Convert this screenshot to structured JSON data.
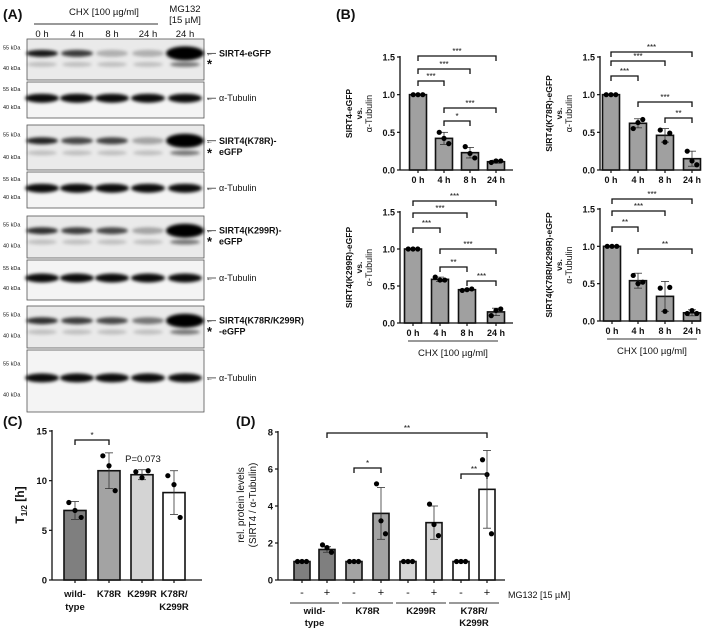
{
  "panels": {
    "a": "(A)",
    "b": "(B)",
    "c": "(C)",
    "d": "(D)"
  },
  "blot": {
    "chx_label": "CHX [100 µg/ml]",
    "mg132_label_1": "MG132",
    "mg132_label_2": "[15 µM]",
    "lanes": [
      "0 h",
      "4 h",
      "8 h",
      "24 h",
      "24 h"
    ],
    "kda_55": "55 kDa",
    "kda_40": "40 kDa",
    "asterisk": "*",
    "tubulin_label": "α-Tubulin",
    "blocks": [
      {
        "label_1": "SIRT4-eGFP",
        "label_2": "",
        "intensity": [
          0.9,
          0.75,
          0.25,
          0.25,
          1.0
        ]
      },
      {
        "label_1": "SIRT4(K78R)-",
        "label_2": "eGFP",
        "intensity": [
          0.85,
          0.7,
          0.72,
          0.3,
          1.0
        ]
      },
      {
        "label_1": "SIRT4(K299R)-",
        "label_2": "eGFP",
        "intensity": [
          0.8,
          0.75,
          0.7,
          0.3,
          1.0
        ]
      },
      {
        "label_1": "SIRT4(K78R/K299R)",
        "label_2": "-eGFP",
        "intensity": [
          0.8,
          0.75,
          0.7,
          0.5,
          1.0
        ]
      }
    ]
  },
  "chart_data": [
    {
      "id": "B1",
      "type": "bar",
      "ylabel_1": "SIRT4-eGFP",
      "ylabel_2": "vs.",
      "ylabel_3": "α-Tubulin",
      "categories": [
        "0 h",
        "4 h",
        "8 h",
        "24 h"
      ],
      "ylim": [
        0,
        1.5
      ],
      "yticks": [
        "0.0",
        "0.5",
        "1.0",
        "1.5"
      ],
      "values": [
        1.0,
        0.42,
        0.23,
        0.11
      ],
      "sd": [
        0,
        0.08,
        0.07,
        0.02
      ],
      "points": [
        [
          1,
          1,
          1
        ],
        [
          0.5,
          0.42,
          0.35
        ],
        [
          0.31,
          0.22,
          0.16
        ],
        [
          0.1,
          0.12,
          0.12
        ]
      ],
      "bar_color": "#a0a0a0",
      "significance": [
        {
          "from": 0,
          "to": 3,
          "label": "***"
        },
        {
          "from": 0,
          "to": 2,
          "label": "***"
        },
        {
          "from": 0,
          "to": 1,
          "label": "***"
        },
        {
          "from": 1,
          "to": 3,
          "label": "***"
        },
        {
          "from": 1,
          "to": 2,
          "label": "*"
        }
      ]
    },
    {
      "id": "B2",
      "type": "bar",
      "ylabel_1": "SIRT4(K78R)-eGFP",
      "ylabel_2": "vs.",
      "ylabel_3": "α-Tubulin",
      "categories": [
        "0 h",
        "4 h",
        "8 h",
        "24 h"
      ],
      "ylim": [
        0,
        1.5
      ],
      "yticks": [
        "0.0",
        "0.5",
        "1.0",
        "1.5"
      ],
      "values": [
        1.0,
        0.62,
        0.46,
        0.15
      ],
      "sd": [
        0,
        0.06,
        0.09,
        0.1
      ],
      "points": [
        [
          1,
          1,
          1
        ],
        [
          0.55,
          0.63,
          0.67
        ],
        [
          0.53,
          0.37,
          0.49
        ],
        [
          0.25,
          0.12,
          0.07
        ]
      ],
      "bar_color": "#a0a0a0",
      "significance": [
        {
          "from": 0,
          "to": 3,
          "label": "***"
        },
        {
          "from": 0,
          "to": 2,
          "label": "***"
        },
        {
          "from": 0,
          "to": 1,
          "label": "***"
        },
        {
          "from": 1,
          "to": 3,
          "label": "***"
        },
        {
          "from": 2,
          "to": 3,
          "label": "**"
        }
      ]
    },
    {
      "id": "B3",
      "type": "bar",
      "ylabel_1": "SIRT4(K299R)-eGFP",
      "ylabel_2": "vs.",
      "ylabel_3": "α-Tubulin",
      "categories": [
        "0 h",
        "4 h",
        "8 h",
        "24 h"
      ],
      "ylim": [
        0,
        1.5
      ],
      "yticks": [
        "0.0",
        "0.5",
        "1.0",
        "1.5"
      ],
      "values": [
        1.0,
        0.59,
        0.45,
        0.15
      ],
      "sd": [
        0,
        0.03,
        0.01,
        0.05
      ],
      "points": [
        [
          1,
          1,
          1
        ],
        [
          0.62,
          0.58,
          0.58
        ],
        [
          0.44,
          0.45,
          0.46
        ],
        [
          0.1,
          0.17,
          0.19
        ]
      ],
      "bar_color": "#a0a0a0",
      "xgroup_label": "CHX [100 µg/ml]",
      "significance": [
        {
          "from": 0,
          "to": 3,
          "label": "***"
        },
        {
          "from": 0,
          "to": 2,
          "label": "***"
        },
        {
          "from": 0,
          "to": 1,
          "label": "***"
        },
        {
          "from": 1,
          "to": 3,
          "label": "***"
        },
        {
          "from": 1,
          "to": 2,
          "label": "**"
        },
        {
          "from": 2,
          "to": 3,
          "label": "***"
        }
      ]
    },
    {
      "id": "B4",
      "type": "bar",
      "ylabel_1": "SIRT4(K78R/K299R)-eGFP",
      "ylabel_2": "vs.",
      "ylabel_3": "α-Tubulin",
      "categories": [
        "0 h",
        "4 h",
        "8 h",
        "24 h"
      ],
      "ylim": [
        0,
        1.5
      ],
      "yticks": [
        "0.0",
        "0.5",
        "1.0",
        "1.5"
      ],
      "values": [
        1.0,
        0.54,
        0.33,
        0.11
      ],
      "sd": [
        0,
        0.1,
        0.2,
        0.04
      ],
      "points": [
        [
          1,
          1,
          1
        ],
        [
          0.61,
          0.5,
          0.52
        ],
        [
          0.44,
          0.13,
          0.45
        ],
        [
          0.1,
          0.14,
          0.1
        ]
      ],
      "bar_color": "#a0a0a0",
      "xgroup_label": "CHX [100 µg/ml]",
      "significance": [
        {
          "from": 0,
          "to": 3,
          "label": "***"
        },
        {
          "from": 0,
          "to": 2,
          "label": "***"
        },
        {
          "from": 0,
          "to": 1,
          "label": "**"
        },
        {
          "from": 1,
          "to": 3,
          "label": "**"
        }
      ]
    },
    {
      "id": "C",
      "type": "bar",
      "ylabel": "T",
      "ylabel_sub": "1/2",
      "ylabel_unit": " [h]",
      "categories": [
        "wild-|type",
        "K78R",
        "K299R",
        "K78R/|K299R"
      ],
      "ylim": [
        0,
        15
      ],
      "yticks": [
        "0",
        "5",
        "10",
        "15"
      ],
      "values": [
        7.0,
        11.0,
        10.6,
        8.8
      ],
      "sd": [
        0.9,
        1.8,
        0.5,
        2.2
      ],
      "points": [
        [
          7.8,
          7.0,
          6.3
        ],
        [
          12.5,
          11.5,
          9.0
        ],
        [
          10.9,
          10.3,
          11.0
        ],
        [
          10.5,
          9.6,
          6.3
        ]
      ],
      "bar_colors": [
        "#7f7f7f",
        "#a3a3a3",
        "#d4d4d4",
        "#ffffff"
      ],
      "annotation": "P=0.073",
      "significance": [
        {
          "from": 0,
          "to": 1,
          "label": "*"
        }
      ]
    },
    {
      "id": "D",
      "type": "bar",
      "ylabel_1": "rel. protein levels",
      "ylabel_2": "(SIRT4 / α-Tubulin)",
      "categories": [
        "-",
        "+",
        "-",
        "+",
        "-",
        "+",
        "-",
        "+"
      ],
      "groups": [
        "wild-|type",
        "K78R",
        "K299R",
        "K78R/|K299R"
      ],
      "treatment_label": "MG132 [15 µM]",
      "ylim": [
        0,
        8
      ],
      "yticks": [
        "0",
        "2",
        "4",
        "6",
        "8"
      ],
      "values": [
        1,
        1.65,
        1,
        3.6,
        1,
        3.1,
        1,
        4.9
      ],
      "sd": [
        0,
        0.15,
        0,
        1.4,
        0,
        0.9,
        0,
        2.1
      ],
      "points": [
        [
          1,
          1,
          1
        ],
        [
          1.9,
          1.75,
          1.5
        ],
        [
          1,
          1,
          1
        ],
        [
          5.2,
          3.2,
          2.5
        ],
        [
          1,
          1,
          1
        ],
        [
          4.1,
          3.0,
          2.4
        ],
        [
          1,
          1,
          1
        ],
        [
          6.5,
          5.7,
          2.5
        ]
      ],
      "bar_colors": [
        "#7f7f7f",
        "#7f7f7f",
        "#a3a3a3",
        "#a3a3a3",
        "#d4d4d4",
        "#d4d4d4",
        "#ffffff",
        "#ffffff"
      ],
      "significance": [
        {
          "from": 1,
          "to": 7,
          "label": "**"
        },
        {
          "from": 2,
          "to": 3,
          "label": "*"
        },
        {
          "from": 6,
          "to": 7,
          "label": "**"
        }
      ]
    }
  ]
}
